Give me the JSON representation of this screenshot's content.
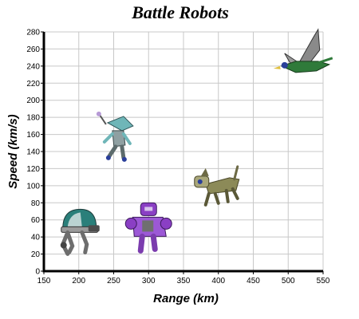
{
  "chart_data": {
    "type": "scatter",
    "title": "Battle Robots",
    "xlabel": "Range (km)",
    "ylabel": "Speed (km/s)",
    "xlim": [
      150,
      550
    ],
    "ylim": [
      0,
      280
    ],
    "xticks": [
      150,
      200,
      250,
      300,
      350,
      400,
      450,
      500,
      550
    ],
    "yticks": [
      0,
      20,
      40,
      60,
      80,
      100,
      120,
      140,
      160,
      180,
      200,
      220,
      240,
      260,
      280
    ],
    "grid": true,
    "points": [
      {
        "robot": "walker-robot",
        "x": 200,
        "y": 50,
        "color": "#2a7f7a"
      },
      {
        "robot": "jetpack-robot",
        "x": 255,
        "y": 155,
        "color": "#6fb6b8"
      },
      {
        "robot": "purple-robot",
        "x": 300,
        "y": 50,
        "color": "#8a3fc4"
      },
      {
        "robot": "dog-robot",
        "x": 400,
        "y": 100,
        "color": "#8c8a58"
      },
      {
        "robot": "dragon-robot",
        "x": 520,
        "y": 240,
        "color": "#2f7a3a"
      }
    ]
  }
}
